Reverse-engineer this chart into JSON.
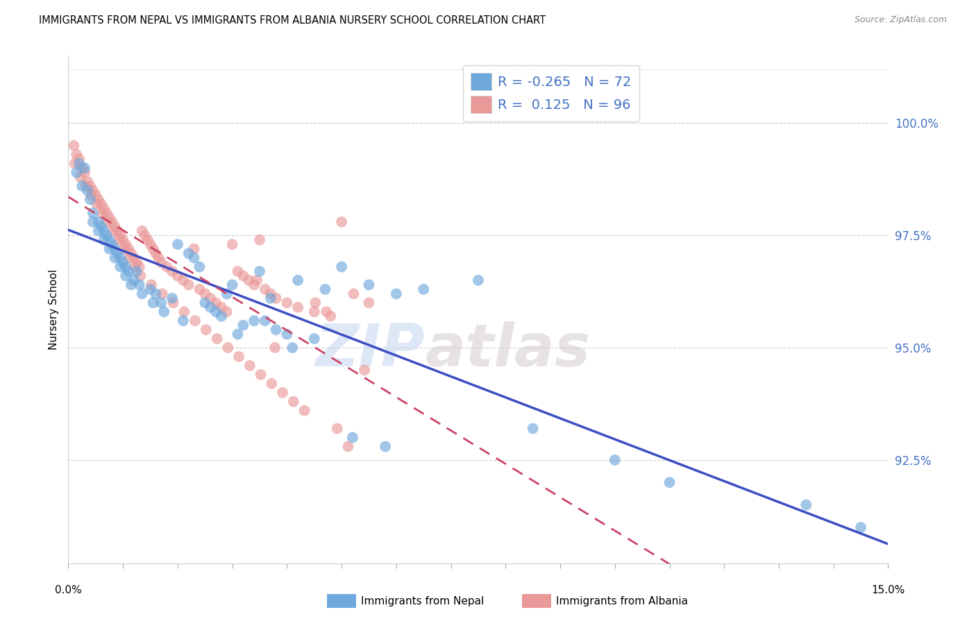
{
  "title": "IMMIGRANTS FROM NEPAL VS IMMIGRANTS FROM ALBANIA NURSERY SCHOOL CORRELATION CHART",
  "source": "Source: ZipAtlas.com",
  "ylabel": "Nursery School",
  "nepal_R": -0.265,
  "nepal_N": 72,
  "albania_R": 0.125,
  "albania_N": 96,
  "nepal_color": "#6fa8dc",
  "albania_color": "#ea9999",
  "nepal_line_color": "#3c4ec2",
  "albania_line_color": "#cc4466",
  "legend_label_nepal": "Immigrants from Nepal",
  "legend_label_albania": "Immigrants from Albania",
  "watermark_zip": "ZIP",
  "watermark_atlas": "atlas",
  "xlim": [
    0.0,
    15.0
  ],
  "ylim": [
    90.2,
    101.5
  ],
  "yticks": [
    92.5,
    95.0,
    97.5,
    100.0
  ],
  "nepal_x": [
    0.2,
    0.35,
    0.4,
    0.45,
    0.55,
    0.6,
    0.65,
    0.7,
    0.75,
    0.8,
    0.85,
    0.9,
    0.95,
    1.0,
    1.05,
    1.1,
    1.2,
    1.25,
    1.3,
    1.5,
    1.6,
    1.7,
    1.9,
    2.0,
    2.2,
    2.4,
    2.5,
    2.6,
    2.7,
    2.8,
    3.0,
    3.2,
    3.4,
    3.5,
    3.6,
    3.8,
    4.0,
    4.2,
    4.5,
    5.0,
    5.5,
    6.0,
    6.5,
    7.5,
    8.5,
    10.0,
    11.0,
    13.5,
    0.15,
    0.25,
    0.45,
    0.55,
    0.65,
    0.75,
    0.85,
    0.95,
    1.05,
    1.15,
    1.35,
    1.55,
    1.75,
    2.1,
    2.3,
    2.9,
    3.1,
    3.7,
    4.1,
    4.7,
    5.2,
    5.8,
    14.5,
    0.3
  ],
  "nepal_y": [
    99.1,
    98.5,
    98.3,
    98.0,
    97.8,
    97.7,
    97.6,
    97.5,
    97.4,
    97.3,
    97.2,
    97.1,
    97.0,
    96.9,
    96.8,
    96.7,
    96.5,
    96.7,
    96.4,
    96.3,
    96.2,
    96.0,
    96.1,
    97.3,
    97.1,
    96.8,
    96.0,
    95.9,
    95.8,
    95.7,
    96.4,
    95.5,
    95.6,
    96.7,
    95.6,
    95.4,
    95.3,
    96.5,
    95.2,
    96.8,
    96.4,
    96.2,
    96.3,
    96.5,
    93.2,
    92.5,
    92.0,
    91.5,
    98.9,
    98.6,
    97.8,
    97.6,
    97.4,
    97.2,
    97.0,
    96.8,
    96.6,
    96.4,
    96.2,
    96.0,
    95.8,
    95.6,
    97.0,
    96.2,
    95.3,
    96.1,
    95.0,
    96.3,
    93.0,
    92.8,
    91.0,
    99.0
  ],
  "albania_x": [
    0.1,
    0.15,
    0.2,
    0.25,
    0.3,
    0.35,
    0.4,
    0.45,
    0.5,
    0.55,
    0.6,
    0.65,
    0.7,
    0.75,
    0.8,
    0.85,
    0.9,
    0.95,
    1.0,
    1.05,
    1.1,
    1.15,
    1.2,
    1.25,
    1.3,
    1.35,
    1.4,
    1.45,
    1.5,
    1.55,
    1.6,
    1.65,
    1.7,
    1.8,
    1.9,
    2.0,
    2.1,
    2.2,
    2.3,
    2.4,
    2.5,
    2.6,
    2.7,
    2.8,
    2.9,
    3.0,
    3.1,
    3.2,
    3.3,
    3.4,
    3.5,
    3.6,
    3.7,
    3.8,
    4.0,
    4.2,
    4.5,
    4.8,
    5.0,
    5.5,
    0.12,
    0.22,
    0.32,
    0.42,
    0.52,
    0.62,
    0.72,
    0.82,
    0.92,
    1.02,
    1.12,
    1.22,
    1.32,
    1.52,
    1.72,
    1.92,
    2.12,
    2.32,
    2.52,
    2.72,
    2.92,
    3.12,
    3.32,
    3.52,
    3.72,
    3.92,
    4.12,
    4.32,
    4.52,
    4.72,
    4.92,
    5.12,
    3.45,
    3.78,
    5.22,
    5.42
  ],
  "albania_y": [
    99.5,
    99.3,
    99.2,
    99.0,
    98.9,
    98.7,
    98.6,
    98.5,
    98.4,
    98.3,
    98.2,
    98.1,
    98.0,
    97.9,
    97.8,
    97.7,
    97.6,
    97.5,
    97.4,
    97.3,
    97.2,
    97.1,
    97.0,
    96.9,
    96.8,
    97.6,
    97.5,
    97.4,
    97.3,
    97.2,
    97.1,
    97.0,
    96.9,
    96.8,
    96.7,
    96.6,
    96.5,
    96.4,
    97.2,
    96.3,
    96.2,
    96.1,
    96.0,
    95.9,
    95.8,
    97.3,
    96.7,
    96.6,
    96.5,
    96.4,
    97.4,
    96.3,
    96.2,
    96.1,
    96.0,
    95.9,
    95.8,
    95.7,
    97.8,
    96.0,
    99.1,
    98.8,
    98.6,
    98.4,
    98.2,
    98.0,
    97.8,
    97.6,
    97.4,
    97.2,
    97.0,
    96.8,
    96.6,
    96.4,
    96.2,
    96.0,
    95.8,
    95.6,
    95.4,
    95.2,
    95.0,
    94.8,
    94.6,
    94.4,
    94.2,
    94.0,
    93.8,
    93.6,
    96.0,
    95.8,
    93.2,
    92.8,
    96.5,
    95.0,
    96.2,
    94.5
  ]
}
